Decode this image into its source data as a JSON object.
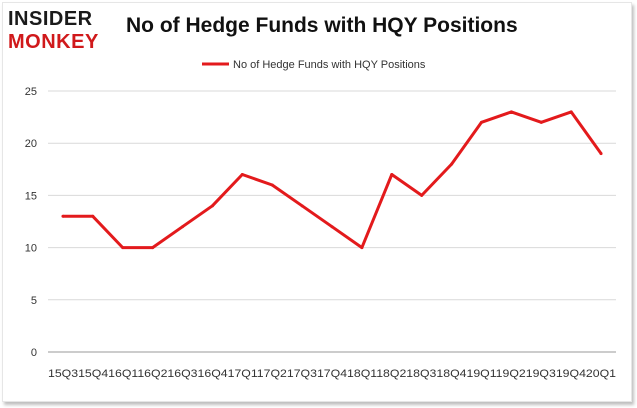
{
  "brand": {
    "line1": "INSIDER",
    "line2": "MONKEY"
  },
  "colors": {
    "series": "#e31a1c",
    "grid": "#d9d9d9",
    "axis": "#999999",
    "brand_red": "#d0191b"
  },
  "chart_data": {
    "type": "line",
    "title": "No of Hedge Funds with HQY Positions",
    "xlabel": "",
    "ylabel": "",
    "ylim": [
      0,
      25
    ],
    "yticks": [
      0,
      5,
      10,
      15,
      20,
      25
    ],
    "grid": true,
    "legend": "top-center",
    "categories": [
      "2015Q3",
      "2015Q4",
      "2016Q1",
      "2016Q2",
      "2016Q3",
      "2016Q4",
      "2017Q1",
      "2017Q2",
      "2017Q3",
      "2017Q4",
      "2018Q1",
      "2018Q2",
      "2018Q3",
      "2018Q4",
      "2019Q1",
      "2019Q2",
      "2019Q3",
      "2019Q4",
      "2020Q1"
    ],
    "xtick_text": "15Q315Q416Q116Q216Q316Q417Q117Q217Q317Q418Q118Q218Q318Q419Q119Q219Q319Q420Q1",
    "series": [
      {
        "name": "No of Hedge Funds with HQY Positions",
        "values": [
          13,
          13,
          10,
          10,
          12,
          14,
          17,
          16,
          14,
          12,
          10,
          17,
          15,
          18,
          22,
          23,
          22,
          23,
          19
        ]
      }
    ]
  }
}
